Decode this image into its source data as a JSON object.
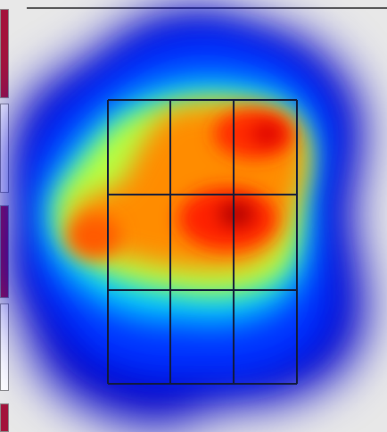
{
  "colors": {
    "background": "#e8e8e8",
    "swatch_red": "#a3133b",
    "swatch_white": "#ffffff",
    "grid_line": "#111a3a"
  },
  "heatmap": {
    "colormap": "jet",
    "grid_rows": 3,
    "grid_cols": 3,
    "missing_cells": [
      "row-3-col-3-top-edge"
    ]
  }
}
